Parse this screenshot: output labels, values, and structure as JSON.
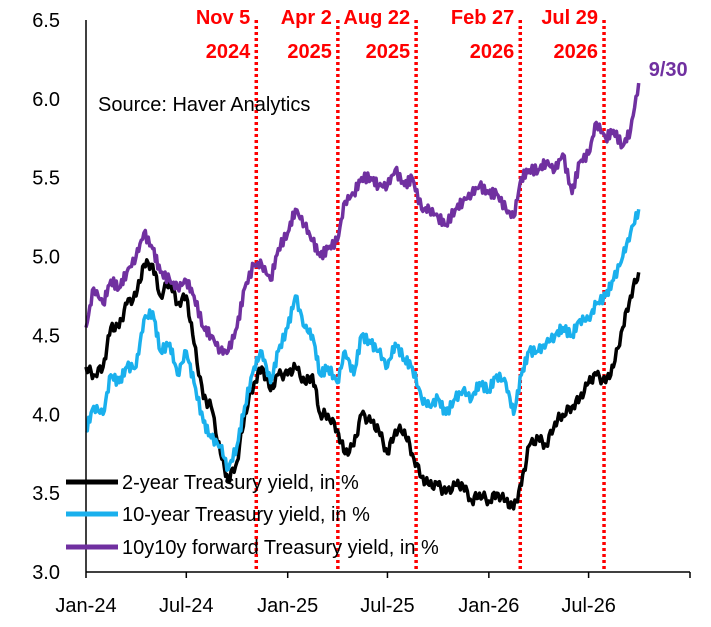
{
  "chart_data": {
    "type": "line",
    "annotation": "Source: Haver Analytics",
    "x_axis": {
      "tick_labels": [
        "Jan-24",
        "Jul-24",
        "Jan-25",
        "Jul-25",
        "Jan-26",
        "Jul-26"
      ],
      "range": [
        "2024-01-01",
        "2027-01-01"
      ]
    },
    "y_axis": {
      "tick_labels": [
        "3.0",
        "3.5",
        "4.0",
        "4.5",
        "5.0",
        "5.5",
        "6.0",
        "6.5"
      ],
      "range": [
        3.0,
        6.5
      ]
    },
    "events": [
      {
        "date": "2024-11-05",
        "line1": "Nov 5",
        "line2": "2024"
      },
      {
        "date": "2025-04-02",
        "line1": "Apr 2",
        "line2": "2025"
      },
      {
        "date": "2025-08-22",
        "line1": "Aug 22",
        "line2": "2025"
      },
      {
        "date": "2026-02-27",
        "line1": "Feb 27",
        "line2": "2026"
      },
      {
        "date": "2026-07-29",
        "line1": "Jul 29",
        "line2": "2026"
      }
    ],
    "end_label": "9/30",
    "series": [
      {
        "name": "2-year Treasury yield, in %",
        "color": "#000000",
        "points": [
          [
            "2024-01-01",
            4.3
          ],
          [
            "2024-01-15",
            4.25
          ],
          [
            "2024-02-01",
            4.3
          ],
          [
            "2024-02-15",
            4.55
          ],
          [
            "2024-03-01",
            4.55
          ],
          [
            "2024-03-15",
            4.7
          ],
          [
            "2024-04-01",
            4.75
          ],
          [
            "2024-04-15",
            4.95
          ],
          [
            "2024-05-01",
            4.95
          ],
          [
            "2024-05-15",
            4.75
          ],
          [
            "2024-06-01",
            4.85
          ],
          [
            "2024-06-15",
            4.7
          ],
          [
            "2024-07-01",
            4.75
          ],
          [
            "2024-07-15",
            4.45
          ],
          [
            "2024-08-01",
            4.1
          ],
          [
            "2024-08-15",
            4.05
          ],
          [
            "2024-09-01",
            3.75
          ],
          [
            "2024-09-15",
            3.58
          ],
          [
            "2024-10-01",
            3.7
          ],
          [
            "2024-10-15",
            4.0
          ],
          [
            "2024-11-01",
            4.2
          ],
          [
            "2024-11-15",
            4.3
          ],
          [
            "2024-12-01",
            4.15
          ],
          [
            "2024-12-15",
            4.25
          ],
          [
            "2025-01-01",
            4.25
          ],
          [
            "2025-01-15",
            4.3
          ],
          [
            "2025-02-01",
            4.2
          ],
          [
            "2025-02-15",
            4.25
          ],
          [
            "2025-03-01",
            4.0
          ],
          [
            "2025-03-15",
            4.0
          ],
          [
            "2025-04-01",
            3.9
          ],
          [
            "2025-04-15",
            3.75
          ],
          [
            "2025-05-01",
            3.8
          ],
          [
            "2025-05-15",
            4.0
          ],
          [
            "2025-06-01",
            3.95
          ],
          [
            "2025-06-15",
            3.9
          ],
          [
            "2025-07-01",
            3.75
          ],
          [
            "2025-07-15",
            3.9
          ],
          [
            "2025-08-01",
            3.9
          ],
          [
            "2025-08-15",
            3.75
          ],
          [
            "2025-09-01",
            3.6
          ],
          [
            "2025-09-15",
            3.55
          ],
          [
            "2025-10-01",
            3.55
          ],
          [
            "2025-10-15",
            3.5
          ],
          [
            "2025-11-01",
            3.55
          ],
          [
            "2025-11-15",
            3.55
          ],
          [
            "2025-12-01",
            3.45
          ],
          [
            "2025-12-15",
            3.5
          ],
          [
            "2026-01-01",
            3.45
          ],
          [
            "2026-01-15",
            3.5
          ],
          [
            "2026-02-01",
            3.45
          ],
          [
            "2026-02-15",
            3.4
          ],
          [
            "2026-03-01",
            3.55
          ],
          [
            "2026-03-15",
            3.8
          ],
          [
            "2026-04-01",
            3.85
          ],
          [
            "2026-04-15",
            3.8
          ],
          [
            "2026-05-01",
            3.95
          ],
          [
            "2026-05-15",
            4.0
          ],
          [
            "2026-06-01",
            4.05
          ],
          [
            "2026-06-15",
            4.1
          ],
          [
            "2026-07-01",
            4.2
          ],
          [
            "2026-07-15",
            4.25
          ],
          [
            "2026-08-01",
            4.2
          ],
          [
            "2026-08-15",
            4.3
          ],
          [
            "2026-09-01",
            4.55
          ],
          [
            "2026-09-15",
            4.75
          ],
          [
            "2026-09-30",
            4.9
          ]
        ]
      },
      {
        "name": "10-year Treasury yield, in %",
        "color": "#1ab0ed",
        "points": [
          [
            "2024-01-01",
            3.9
          ],
          [
            "2024-01-15",
            4.05
          ],
          [
            "2024-02-01",
            4.0
          ],
          [
            "2024-02-15",
            4.25
          ],
          [
            "2024-03-01",
            4.2
          ],
          [
            "2024-03-15",
            4.3
          ],
          [
            "2024-04-01",
            4.3
          ],
          [
            "2024-04-15",
            4.6
          ],
          [
            "2024-05-01",
            4.65
          ],
          [
            "2024-05-15",
            4.4
          ],
          [
            "2024-06-01",
            4.45
          ],
          [
            "2024-06-15",
            4.25
          ],
          [
            "2024-07-01",
            4.4
          ],
          [
            "2024-07-15",
            4.2
          ],
          [
            "2024-08-01",
            3.95
          ],
          [
            "2024-08-15",
            3.85
          ],
          [
            "2024-09-01",
            3.8
          ],
          [
            "2024-09-15",
            3.65
          ],
          [
            "2024-10-01",
            3.8
          ],
          [
            "2024-10-15",
            4.05
          ],
          [
            "2024-11-01",
            4.3
          ],
          [
            "2024-11-15",
            4.4
          ],
          [
            "2024-12-01",
            4.2
          ],
          [
            "2024-12-15",
            4.4
          ],
          [
            "2025-01-01",
            4.55
          ],
          [
            "2025-01-15",
            4.75
          ],
          [
            "2025-02-01",
            4.55
          ],
          [
            "2025-02-15",
            4.5
          ],
          [
            "2025-03-01",
            4.25
          ],
          [
            "2025-03-15",
            4.3
          ],
          [
            "2025-04-01",
            4.2
          ],
          [
            "2025-04-15",
            4.4
          ],
          [
            "2025-05-01",
            4.25
          ],
          [
            "2025-05-15",
            4.5
          ],
          [
            "2025-06-01",
            4.45
          ],
          [
            "2025-06-15",
            4.4
          ],
          [
            "2025-07-01",
            4.3
          ],
          [
            "2025-07-15",
            4.45
          ],
          [
            "2025-08-01",
            4.35
          ],
          [
            "2025-08-15",
            4.3
          ],
          [
            "2025-09-01",
            4.1
          ],
          [
            "2025-09-15",
            4.05
          ],
          [
            "2025-10-01",
            4.1
          ],
          [
            "2025-10-15",
            4.0
          ],
          [
            "2025-11-01",
            4.1
          ],
          [
            "2025-11-15",
            4.15
          ],
          [
            "2025-12-01",
            4.1
          ],
          [
            "2025-12-15",
            4.2
          ],
          [
            "2026-01-01",
            4.15
          ],
          [
            "2026-01-15",
            4.25
          ],
          [
            "2026-02-01",
            4.2
          ],
          [
            "2026-02-15",
            4.0
          ],
          [
            "2026-03-01",
            4.25
          ],
          [
            "2026-03-15",
            4.4
          ],
          [
            "2026-04-01",
            4.4
          ],
          [
            "2026-04-15",
            4.45
          ],
          [
            "2026-05-01",
            4.5
          ],
          [
            "2026-05-15",
            4.55
          ],
          [
            "2026-06-01",
            4.5
          ],
          [
            "2026-06-15",
            4.6
          ],
          [
            "2026-07-01",
            4.6
          ],
          [
            "2026-07-15",
            4.7
          ],
          [
            "2026-08-01",
            4.75
          ],
          [
            "2026-08-15",
            4.85
          ],
          [
            "2026-09-01",
            5.0
          ],
          [
            "2026-09-15",
            5.15
          ],
          [
            "2026-09-30",
            5.3
          ]
        ]
      },
      {
        "name": "10y10y forward Treasury yield, in %",
        "color": "#7030a0",
        "points": [
          [
            "2024-01-01",
            4.55
          ],
          [
            "2024-01-15",
            4.8
          ],
          [
            "2024-02-01",
            4.7
          ],
          [
            "2024-02-15",
            4.85
          ],
          [
            "2024-03-01",
            4.8
          ],
          [
            "2024-03-15",
            4.9
          ],
          [
            "2024-04-01",
            5.0
          ],
          [
            "2024-04-15",
            5.15
          ],
          [
            "2024-05-01",
            5.05
          ],
          [
            "2024-05-15",
            4.9
          ],
          [
            "2024-06-01",
            4.85
          ],
          [
            "2024-06-15",
            4.8
          ],
          [
            "2024-07-01",
            4.85
          ],
          [
            "2024-07-15",
            4.75
          ],
          [
            "2024-08-01",
            4.55
          ],
          [
            "2024-08-15",
            4.5
          ],
          [
            "2024-09-01",
            4.4
          ],
          [
            "2024-09-15",
            4.4
          ],
          [
            "2024-10-01",
            4.55
          ],
          [
            "2024-10-15",
            4.8
          ],
          [
            "2024-11-01",
            4.95
          ],
          [
            "2024-11-15",
            4.95
          ],
          [
            "2024-12-01",
            4.85
          ],
          [
            "2024-12-15",
            5.05
          ],
          [
            "2025-01-01",
            5.15
          ],
          [
            "2025-01-15",
            5.3
          ],
          [
            "2025-02-01",
            5.2
          ],
          [
            "2025-02-15",
            5.1
          ],
          [
            "2025-03-01",
            5.0
          ],
          [
            "2025-03-15",
            5.05
          ],
          [
            "2025-04-01",
            5.1
          ],
          [
            "2025-04-15",
            5.35
          ],
          [
            "2025-05-01",
            5.4
          ],
          [
            "2025-05-15",
            5.5
          ],
          [
            "2025-06-01",
            5.5
          ],
          [
            "2025-06-15",
            5.45
          ],
          [
            "2025-07-01",
            5.45
          ],
          [
            "2025-07-15",
            5.55
          ],
          [
            "2025-08-01",
            5.45
          ],
          [
            "2025-08-15",
            5.5
          ],
          [
            "2025-09-01",
            5.3
          ],
          [
            "2025-09-15",
            5.3
          ],
          [
            "2025-10-01",
            5.25
          ],
          [
            "2025-10-15",
            5.2
          ],
          [
            "2025-11-01",
            5.3
          ],
          [
            "2025-11-15",
            5.35
          ],
          [
            "2025-12-01",
            5.4
          ],
          [
            "2025-12-15",
            5.45
          ],
          [
            "2026-01-01",
            5.4
          ],
          [
            "2026-01-15",
            5.4
          ],
          [
            "2026-02-01",
            5.3
          ],
          [
            "2026-02-15",
            5.25
          ],
          [
            "2026-03-01",
            5.5
          ],
          [
            "2026-03-15",
            5.55
          ],
          [
            "2026-04-01",
            5.55
          ],
          [
            "2026-04-15",
            5.6
          ],
          [
            "2026-05-01",
            5.55
          ],
          [
            "2026-05-15",
            5.65
          ],
          [
            "2026-06-01",
            5.4
          ],
          [
            "2026-06-15",
            5.6
          ],
          [
            "2026-07-01",
            5.65
          ],
          [
            "2026-07-15",
            5.85
          ],
          [
            "2026-08-01",
            5.75
          ],
          [
            "2026-08-15",
            5.8
          ],
          [
            "2026-09-01",
            5.7
          ],
          [
            "2026-09-15",
            5.8
          ],
          [
            "2026-09-30",
            6.1
          ]
        ]
      }
    ]
  }
}
